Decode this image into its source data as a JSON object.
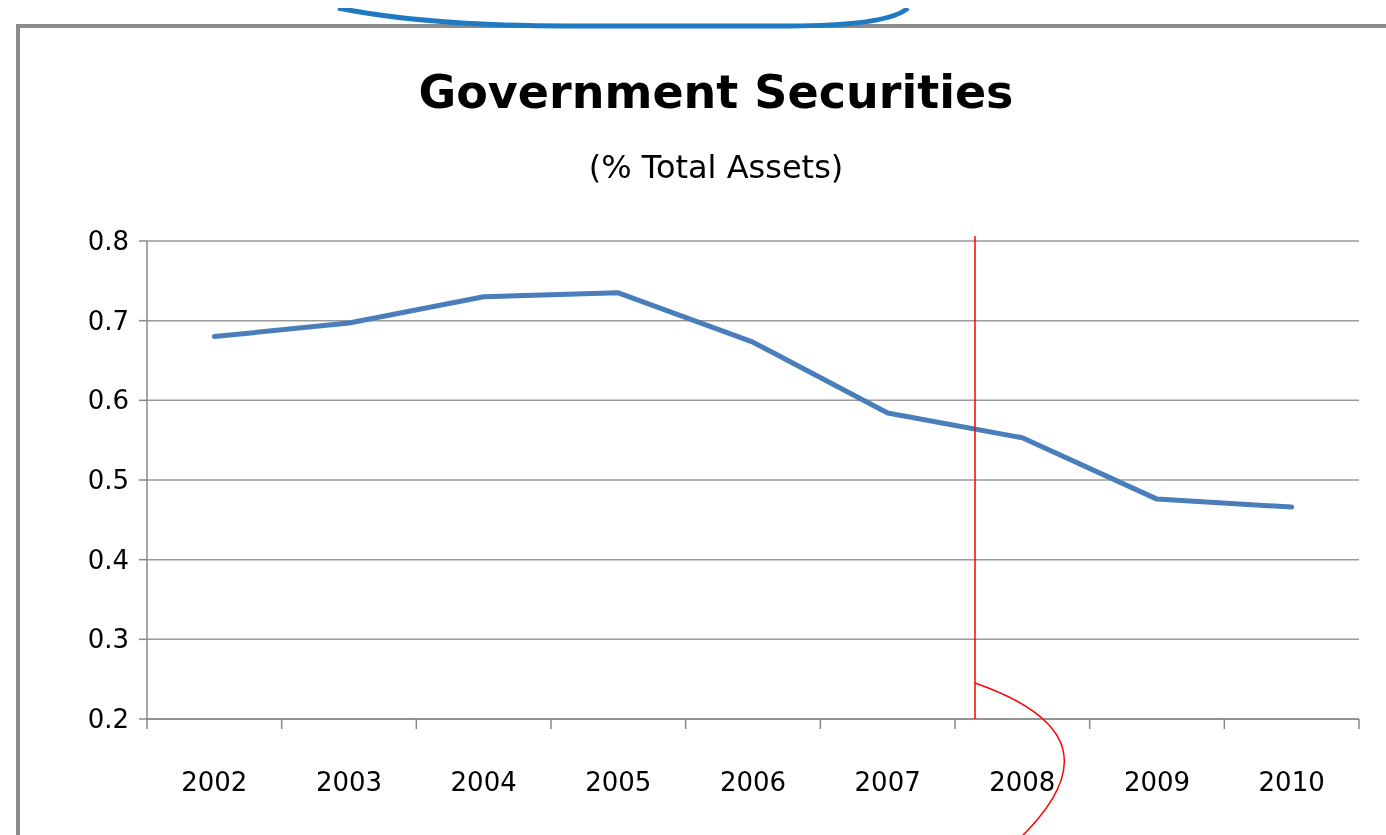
{
  "chart_data": {
    "type": "line",
    "title": "Government Securities",
    "subtitle": "(% Total Assets)",
    "categories": [
      "2002",
      "2003",
      "2004",
      "2005",
      "2006",
      "2007",
      "2008",
      "2009",
      "2010"
    ],
    "series": [
      {
        "color": "#4a7ebb",
        "values": [
          0.68,
          0.697,
          0.73,
          0.735,
          0.673,
          0.584,
          0.553,
          0.476,
          0.466
        ]
      }
    ],
    "ylim": [
      0.2,
      0.8
    ],
    "yticks": [
      {
        "value": 0.2,
        "label": "0.2"
      },
      {
        "value": 0.3,
        "label": "0.3"
      },
      {
        "value": 0.4,
        "label": "0.4"
      },
      {
        "value": 0.5,
        "label": "0.5"
      },
      {
        "value": 0.6,
        "label": "0.6"
      },
      {
        "value": 0.7,
        "label": "0.7"
      },
      {
        "value": 0.8,
        "label": "0.8"
      }
    ],
    "grid": "y",
    "marker": "none",
    "line_style": "solid",
    "ref_lines": [
      {
        "axis": "x",
        "value": "2008",
        "color": "#ff0000"
      }
    ]
  }
}
